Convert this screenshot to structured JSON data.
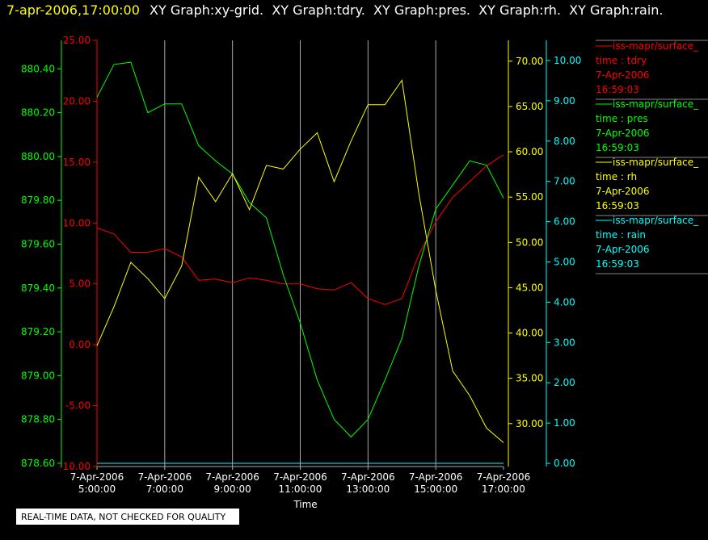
{
  "chart_data": {
    "type": "line",
    "timestamp": "7-apr-2006,17:00:00",
    "title": "XY Graph:xy-grid.  XY Graph:tdry.  XY Graph:pres.  XY Graph:rh.  XY Graph:rain.",
    "xlabel": "Time",
    "footer": "REAL-TIME DATA, NOT CHECKED FOR QUALITY",
    "xlim": [
      5,
      17
    ],
    "xticks": [
      {
        "value": 5,
        "label": "7-Apr-2006\n5:00:00"
      },
      {
        "value": 7,
        "label": "7-Apr-2006\n7:00:00"
      },
      {
        "value": 9,
        "label": "7-Apr-2006\n9:00:00"
      },
      {
        "value": 11,
        "label": "7-Apr-2006\n11:00:00"
      },
      {
        "value": 13,
        "label": "7-Apr-2006\n13:00:00"
      },
      {
        "value": 15,
        "label": "7-Apr-2006\n15:00:00"
      },
      {
        "value": 17,
        "label": "7-Apr-2006\n17:00:00"
      }
    ],
    "grid": true,
    "x": [
      5,
      5.5,
      6,
      6.5,
      7,
      7.5,
      8,
      8.5,
      9,
      9.5,
      10,
      10.5,
      11,
      11.5,
      12,
      12.5,
      13,
      13.5,
      14,
      14.5,
      15,
      15.5,
      16,
      16.5,
      17
    ],
    "series": [
      {
        "name": "time : tdry",
        "source": "iss-mapr/surface_",
        "date": "7-Apr-2006",
        "clock": "16:59:03",
        "color": "#ff0000",
        "side": "left",
        "ylim": [
          -10,
          25
        ],
        "yticks": [
          {
            "value": 25,
            "label": "25.00"
          },
          {
            "value": 20,
            "label": "20.00"
          },
          {
            "value": 15,
            "label": "15.00"
          },
          {
            "value": 10,
            "label": "10.00"
          },
          {
            "value": 5,
            "label": "5.00"
          },
          {
            "value": 0,
            "label": "0.00"
          },
          {
            "value": -5,
            "label": "-5.00"
          },
          {
            "value": -10,
            "label": "-10.00"
          }
        ],
        "values": [
          9.6,
          9.1,
          7.6,
          7.6,
          7.9,
          7.2,
          5.3,
          5.4,
          5.1,
          5.5,
          5.3,
          5.0,
          5.0,
          4.6,
          4.5,
          5.1,
          3.8,
          3.3,
          3.8,
          7.4,
          10.1,
          12.1,
          13.4,
          14.7,
          15.6
        ]
      },
      {
        "name": "time : pres",
        "source": "iss-mapr/surface_",
        "date": "7-Apr-2006",
        "clock": "16:59:03",
        "color": "#00ff00",
        "side": "left",
        "ylim": [
          878.585,
          880.53
        ],
        "yticks": [
          {
            "value": 880.4,
            "label": "880.40"
          },
          {
            "value": 880.2,
            "label": "880.20"
          },
          {
            "value": 880.0,
            "label": "880.00"
          },
          {
            "value": 879.8,
            "label": "879.80"
          },
          {
            "value": 879.6,
            "label": "879.60"
          },
          {
            "value": 879.4,
            "label": "879.40"
          },
          {
            "value": 879.2,
            "label": "879.20"
          },
          {
            "value": 879.0,
            "label": "879.00"
          },
          {
            "value": 878.8,
            "label": "878.80"
          },
          {
            "value": 878.6,
            "label": "878.60"
          }
        ],
        "values": [
          880.27,
          880.42,
          880.43,
          880.2,
          880.24,
          880.24,
          880.05,
          879.98,
          879.92,
          879.79,
          879.72,
          879.46,
          879.24,
          878.98,
          878.8,
          878.72,
          878.8,
          878.98,
          879.17,
          879.5,
          879.76,
          879.87,
          879.98,
          879.96,
          879.81
        ]
      },
      {
        "name": "time : rh",
        "source": "iss-mapr/surface_",
        "date": "7-Apr-2006",
        "clock": "16:59:03",
        "color": "#ffff00",
        "side": "right",
        "ylim": [
          25.26,
          72.3
        ],
        "yticks": [
          {
            "value": 70,
            "label": "70.00"
          },
          {
            "value": 65,
            "label": "65.00"
          },
          {
            "value": 60,
            "label": "60.00"
          },
          {
            "value": 55,
            "label": "55.00"
          },
          {
            "value": 50,
            "label": "50.00"
          },
          {
            "value": 45,
            "label": "45.00"
          },
          {
            "value": 40,
            "label": "40.00"
          },
          {
            "value": 35,
            "label": "35.00"
          },
          {
            "value": 30,
            "label": "30.00"
          }
        ],
        "values": [
          38.6,
          42.9,
          47.8,
          46.0,
          43.8,
          47.4,
          57.2,
          54.5,
          57.6,
          53.6,
          58.5,
          58.1,
          60.3,
          62.1,
          56.7,
          61.2,
          65.2,
          65.2,
          67.9,
          55.4,
          44.7,
          35.8,
          33.1,
          29.5,
          27.9
        ]
      },
      {
        "name": "time : rain",
        "source": "iss-mapr/surface_",
        "date": "7-Apr-2006",
        "clock": "16:59:03",
        "color": "#00ffff",
        "side": "right",
        "ylim": [
          -0.08,
          10.5
        ],
        "yticks": [
          {
            "value": 10,
            "label": "10.00"
          },
          {
            "value": 9,
            "label": "9.00"
          },
          {
            "value": 8,
            "label": "8.00"
          },
          {
            "value": 7,
            "label": "7.00"
          },
          {
            "value": 6,
            "label": "6.00"
          },
          {
            "value": 5,
            "label": "5.00"
          },
          {
            "value": 4,
            "label": "4.00"
          },
          {
            "value": 3,
            "label": "3.00"
          },
          {
            "value": 2,
            "label": "2.00"
          },
          {
            "value": 1,
            "label": "1.00"
          },
          {
            "value": 0,
            "label": "0.00"
          }
        ],
        "values": [
          0,
          0,
          0,
          0,
          0,
          0,
          0,
          0,
          0,
          0,
          0,
          0,
          0,
          0,
          0,
          0,
          0,
          0,
          0,
          0,
          0,
          0,
          0,
          0,
          0
        ]
      }
    ]
  }
}
